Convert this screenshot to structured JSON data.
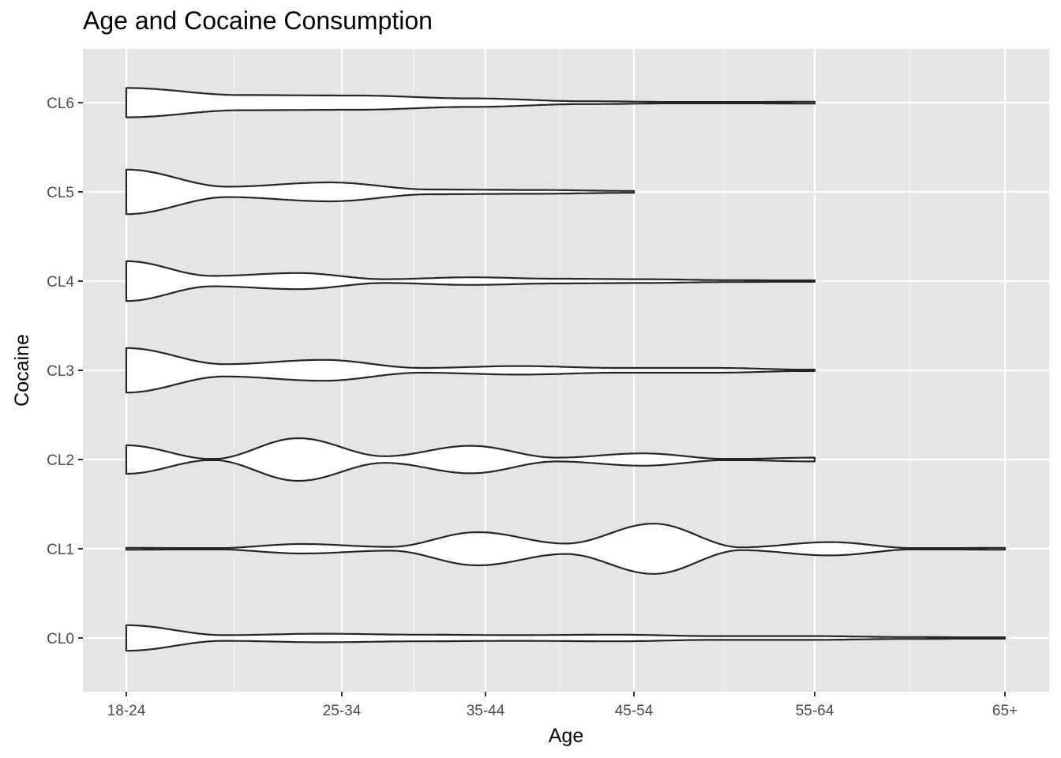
{
  "chart_data": {
    "type": "violin",
    "title": "Age and Cocaine Consumption",
    "xlabel": "Age",
    "ylabel": "Cocaine",
    "orientation": "horizontal",
    "x_categories": [
      "18-24",
      "25-34",
      "35-44",
      "45-54",
      "55-64",
      "65+"
    ],
    "x_positions": [
      1,
      2,
      3,
      4,
      5,
      6
    ],
    "x_scale": "unevenly spaced categorical positions as drawn",
    "y_categories": [
      "CL0",
      "CL1",
      "CL2",
      "CL3",
      "CL4",
      "CL5",
      "CL6"
    ],
    "grid": true,
    "legend": "none",
    "colors": {
      "panel": "#e5e5e5",
      "grid": "#ffffff",
      "violin_fill": "#ffffff",
      "violin_stroke": "#262626"
    },
    "series": [
      {
        "category": "CL0",
        "x_min": 1,
        "x_max": 6,
        "relative_width": [
          0.27,
          0.06,
          0.09,
          0.07,
          0.06,
          0.07,
          0.04,
          0.04,
          0.02,
          0.01
        ]
      },
      {
        "category": "CL1",
        "x_min": 1,
        "x_max": 6,
        "relative_width": [
          0.02,
          0.01,
          0.1,
          0.04,
          0.35,
          0.11,
          0.53,
          0.03,
          0.14,
          0.01,
          0.02
        ]
      },
      {
        "category": "CL2",
        "x_min": 1,
        "x_max": 5,
        "relative_width": [
          0.3,
          0.01,
          0.45,
          0.07,
          0.29,
          0.04,
          0.13,
          0.01,
          0.04
        ]
      },
      {
        "category": "CL3",
        "x_min": 1,
        "x_max": 5,
        "relative_width": [
          0.47,
          0.13,
          0.22,
          0.05,
          0.09,
          0.05,
          0.05,
          0.01
        ]
      },
      {
        "category": "CL4",
        "x_min": 1,
        "x_max": 5,
        "relative_width": [
          0.42,
          0.11,
          0.17,
          0.04,
          0.08,
          0.05,
          0.04,
          0.02,
          0.01
        ]
      },
      {
        "category": "CL5",
        "x_min": 1,
        "x_max": 4,
        "relative_width": [
          0.47,
          0.11,
          0.2,
          0.05,
          0.04,
          0.02
        ]
      },
      {
        "category": "CL6",
        "x_min": 1,
        "x_max": 5,
        "relative_width": [
          0.31,
          0.16,
          0.15,
          0.09,
          0.03,
          0.01,
          0.02
        ]
      }
    ]
  }
}
